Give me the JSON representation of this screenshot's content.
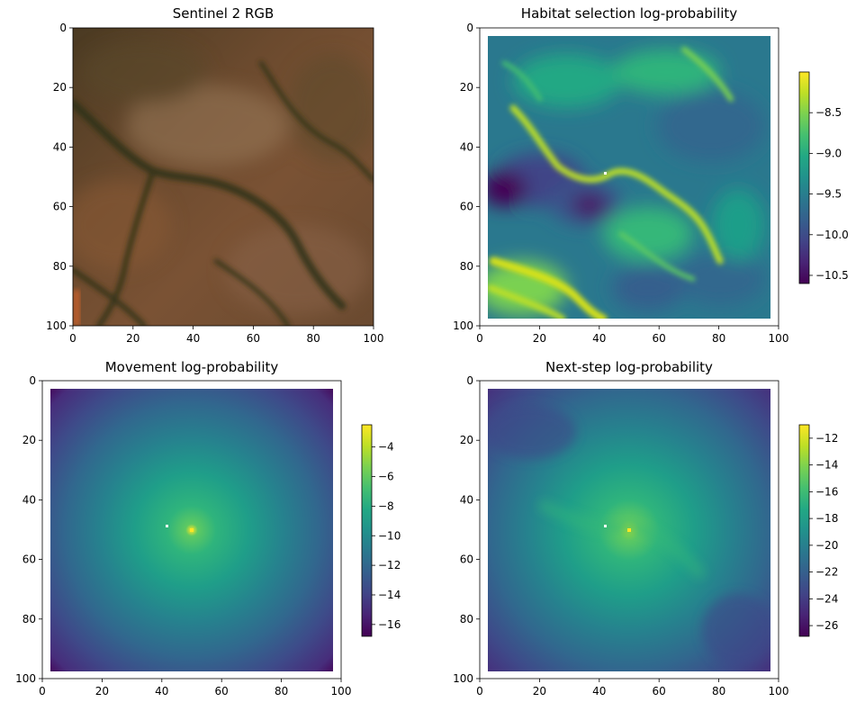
{
  "chart_data": [
    {
      "type": "heatmap",
      "title": "Sentinel 2 RGB",
      "xlim": [
        0,
        100
      ],
      "ylim": [
        100,
        0
      ],
      "xticks": [
        0,
        20,
        40,
        60,
        80,
        100
      ],
      "yticks": [
        0,
        20,
        40,
        60,
        80,
        100
      ],
      "colorbar": null,
      "image": "satellite RGB, brown terrain with dark drainage channels"
    },
    {
      "type": "heatmap",
      "title": "Habitat selection log-probability",
      "xlim": [
        0,
        100
      ],
      "ylim": [
        100,
        0
      ],
      "xticks": [
        0,
        20,
        40,
        60,
        80,
        100
      ],
      "yticks": [
        0,
        20,
        40,
        60,
        80,
        100
      ],
      "colormap": "viridis",
      "colorbar": {
        "min": -10.6,
        "max": -8.0,
        "ticks": [
          -10.5,
          -10.0,
          -9.5,
          -9.0,
          -8.5
        ],
        "tick_labels": [
          "−10.5",
          "−10.0",
          "−9.5",
          "−9.0",
          "−8.5"
        ]
      },
      "marker": {
        "x": 42,
        "y": 49,
        "color": "#ffffff"
      }
    },
    {
      "type": "heatmap",
      "title": "Movement log-probability",
      "xlim": [
        0,
        100
      ],
      "ylim": [
        100,
        0
      ],
      "xticks": [
        0,
        20,
        40,
        60,
        80,
        100
      ],
      "yticks": [
        0,
        20,
        40,
        60,
        80,
        100
      ],
      "colormap": "viridis",
      "colorbar": {
        "min": -16.8,
        "max": -2.5,
        "ticks": [
          -16,
          -14,
          -12,
          -10,
          -8,
          -6,
          -4
        ],
        "tick_labels": [
          "−16",
          "−14",
          "−12",
          "−10",
          "−8",
          "−6",
          "−4"
        ]
      },
      "marker": {
        "x": 42,
        "y": 49,
        "color": "#ffffff"
      },
      "peak": {
        "x": 50,
        "y": 50
      }
    },
    {
      "type": "heatmap",
      "title": "Next-step log-probability",
      "xlim": [
        0,
        100
      ],
      "ylim": [
        100,
        0
      ],
      "xticks": [
        0,
        20,
        40,
        60,
        80,
        100
      ],
      "yticks": [
        0,
        20,
        40,
        60,
        80,
        100
      ],
      "colormap": "viridis",
      "colorbar": {
        "min": -26.8,
        "max": -11.0,
        "ticks": [
          -26,
          -24,
          -22,
          -20,
          -18,
          -16,
          -14,
          -12
        ],
        "tick_labels": [
          "−26",
          "−24",
          "−22",
          "−20",
          "−18",
          "−16",
          "−14",
          "−12"
        ]
      },
      "marker": {
        "x": 42,
        "y": 49,
        "color": "#ffffff"
      },
      "peak": {
        "x": 50,
        "y": 50
      }
    }
  ]
}
